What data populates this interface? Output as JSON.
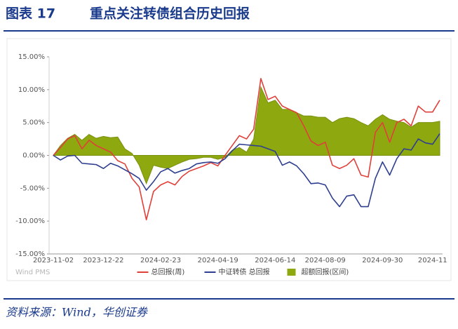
{
  "chart_data": {
    "type": "line",
    "figure_label": "图表 17",
    "title": "重点关注转债组合历史回报",
    "watermark": "Wind PMS",
    "source": "资料来源：Wind，华创证券",
    "categories": [
      "2023-11-02",
      null,
      null,
      null,
      null,
      null,
      null,
      "2023-12-22",
      null,
      null,
      null,
      null,
      null,
      null,
      null,
      "2024-02-23",
      null,
      null,
      null,
      null,
      null,
      null,
      null,
      "2024-04-19",
      null,
      null,
      null,
      null,
      null,
      null,
      null,
      "2024-06-14",
      null,
      null,
      null,
      null,
      null,
      null,
      "2024-08-09",
      null,
      null,
      null,
      null,
      null,
      null,
      null,
      "2024-09-30",
      null,
      null,
      null,
      null,
      null,
      null,
      "2024-11",
      null
    ],
    "ylim": [
      -15,
      15
    ],
    "yticks": [
      {
        "value": -15,
        "label": "-15.00%"
      },
      {
        "value": -10,
        "label": "-10.00%"
      },
      {
        "value": -5,
        "label": "-5.00%"
      },
      {
        "value": 0,
        "label": "0.00%"
      },
      {
        "value": 5,
        "label": "5.00%"
      },
      {
        "value": 10,
        "label": "10.00%"
      },
      {
        "value": 15,
        "label": "15.00%"
      }
    ],
    "legend": "bottom",
    "series": [
      {
        "name": "超额回报(区间)",
        "color": "#8ea80f",
        "fill": true,
        "values": [
          0,
          1.5,
          2.6,
          3.2,
          2.3,
          3.2,
          2.6,
          2.9,
          2.7,
          2.8,
          1,
          0.3,
          -1.5,
          -4.3,
          -1.5,
          -1.8,
          -2,
          -1.5,
          -1,
          -0.6,
          -0.5,
          -0.3,
          -0.3,
          -0.6,
          -0.3,
          0.8,
          1.2,
          0.5,
          2.5,
          10.4,
          8,
          8.4,
          7,
          7,
          6.5,
          6,
          6,
          5.8,
          5.8,
          5,
          5.6,
          5.8,
          5.6,
          5,
          4.5,
          5.5,
          6.2,
          5.5,
          5.2,
          5,
          4.3,
          5,
          5,
          5,
          5.2
        ]
      },
      {
        "name": "总回报(周)",
        "color": "#e0403a",
        "fill": false,
        "values": [
          0,
          1.2,
          2.5,
          3,
          1,
          2.3,
          1.5,
          1,
          0.5,
          -0.8,
          -1.3,
          -3.5,
          -4.8,
          -9.8,
          -5.5,
          -4.5,
          -4,
          -4.5,
          -3.2,
          -2.4,
          -2,
          -1.6,
          -1.1,
          -1.6,
          0,
          1.5,
          3,
          2.5,
          4,
          11.7,
          8.5,
          9,
          7.5,
          7,
          6.5,
          4.5,
          2.2,
          1.5,
          2,
          -1.5,
          -2,
          -1.5,
          -0.5,
          -3,
          -3.3,
          3.5,
          5,
          2,
          5,
          5.5,
          4.5,
          7.5,
          6.6,
          6.6,
          8.4
        ]
      },
      {
        "name": "中证转债 总回报",
        "color": "#2e3f8f",
        "fill": false,
        "values": [
          0,
          -0.7,
          -0.1,
          0,
          -1.2,
          -1.3,
          -1.4,
          -2,
          -1.2,
          -1.6,
          -2.2,
          -2.8,
          -3.5,
          -5.3,
          -4,
          -2.5,
          -2,
          -2.7,
          -2.3,
          -2,
          -1.3,
          -1.1,
          -1,
          -1.2,
          -0.5,
          0.7,
          1.7,
          1.6,
          1.5,
          1.4,
          1,
          0.6,
          -1.5,
          -1,
          -1.6,
          -2.8,
          -4.3,
          -4.2,
          -4.5,
          -6.5,
          -7.8,
          -6.2,
          -6,
          -7.8,
          -7.8,
          -3.5,
          -1,
          -3,
          -0.5,
          1,
          0.8,
          2.5,
          1.9,
          1.7,
          3.3
        ]
      }
    ]
  }
}
